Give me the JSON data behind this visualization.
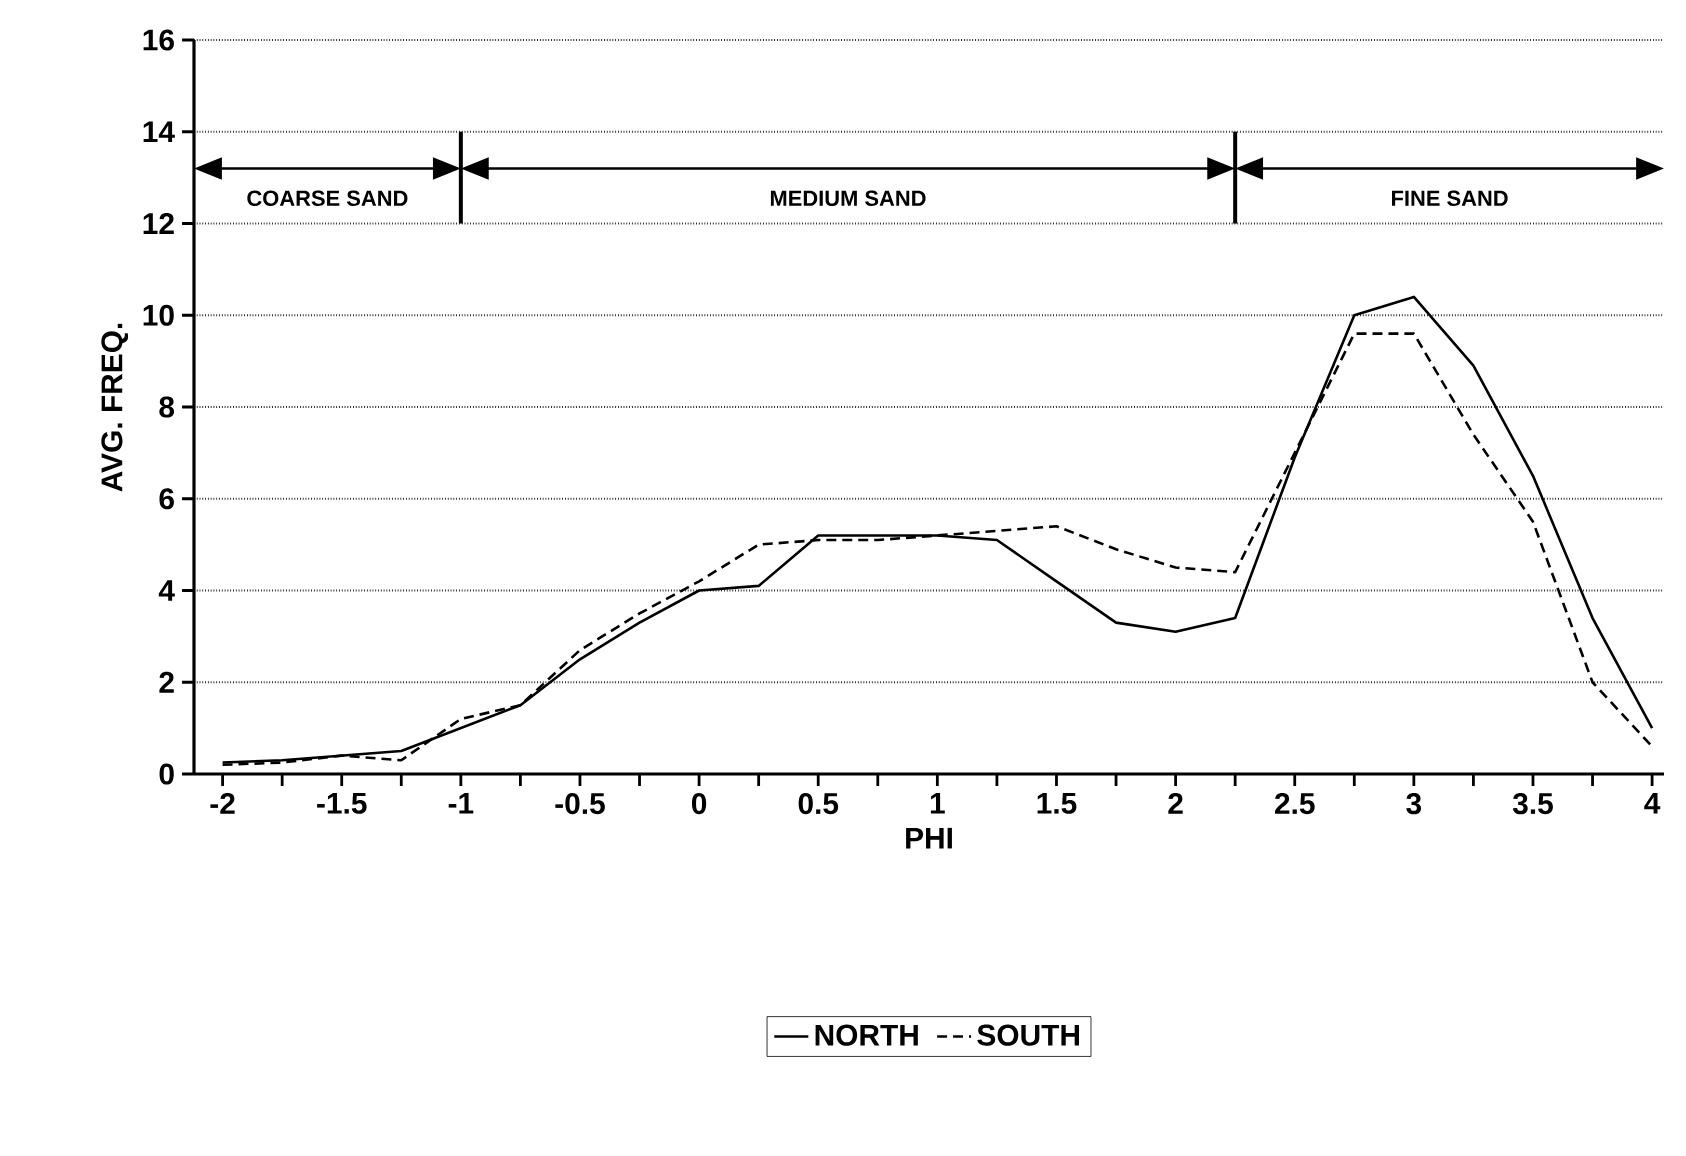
{
  "chart_data": {
    "type": "line",
    "xlabel": "PHI",
    "ylabel": "AVG. FREQ.",
    "xlim": [
      -2.12,
      4.05
    ],
    "ylim": [
      0,
      16
    ],
    "xticks": [
      -2,
      {
        "value": -1.75,
        "label": null
      },
      -1.5,
      {
        "value": -1.25,
        "label": null
      },
      -1,
      {
        "value": -0.75,
        "label": null
      },
      -0.5,
      {
        "value": -0.25,
        "label": null
      },
      0,
      {
        "value": 0.25,
        "label": null
      },
      0.5,
      {
        "value": 0.75,
        "label": null
      },
      1,
      {
        "value": 1.25,
        "label": null
      },
      1.5,
      {
        "value": 1.75,
        "label": null
      },
      2,
      {
        "value": 2.25,
        "label": null
      },
      2.5,
      {
        "value": 2.75,
        "label": null
      },
      3,
      {
        "value": 3.25,
        "label": null
      },
      3.5,
      {
        "value": 3.75,
        "label": null
      },
      4
    ],
    "yticks": [
      0,
      2,
      4,
      6,
      8,
      10,
      12,
      14,
      16
    ],
    "grid": "y",
    "legend": "bottom",
    "x": [
      -2,
      -1.75,
      -1.5,
      -1.25,
      -1,
      -0.75,
      -0.5,
      -0.25,
      0,
      0.25,
      0.5,
      0.75,
      1,
      1.25,
      1.5,
      1.75,
      2,
      2.25,
      2.5,
      2.75,
      3,
      3.25,
      3.5,
      3.75,
      4
    ],
    "series": [
      {
        "name": "NORTH",
        "color": "#000000",
        "line_style": "solid",
        "values": [
          0.25,
          0.3,
          0.4,
          0.5,
          1.0,
          1.5,
          2.5,
          3.3,
          4.0,
          4.1,
          5.2,
          5.2,
          5.2,
          5.1,
          4.2,
          3.3,
          3.1,
          3.4,
          6.9,
          10.0,
          10.4,
          8.9,
          6.5,
          3.4,
          1.0
        ]
      },
      {
        "name": "SOUTH",
        "color": "#000000",
        "line_style": "dashed",
        "values": [
          0.2,
          0.25,
          0.4,
          0.3,
          1.2,
          1.5,
          2.7,
          3.5,
          4.2,
          5.0,
          5.1,
          5.1,
          5.2,
          5.3,
          5.4,
          4.9,
          4.5,
          4.4,
          7.0,
          9.6,
          9.6,
          7.4,
          5.5,
          2.0,
          0.6
        ]
      }
    ],
    "ref_lines": [
      {
        "axis": "x",
        "value": -1
      },
      {
        "axis": "x",
        "value": 2.25
      }
    ],
    "annotations": [
      "COARSE SAND",
      "MEDIUM SAND",
      "FINE SAND"
    ]
  }
}
